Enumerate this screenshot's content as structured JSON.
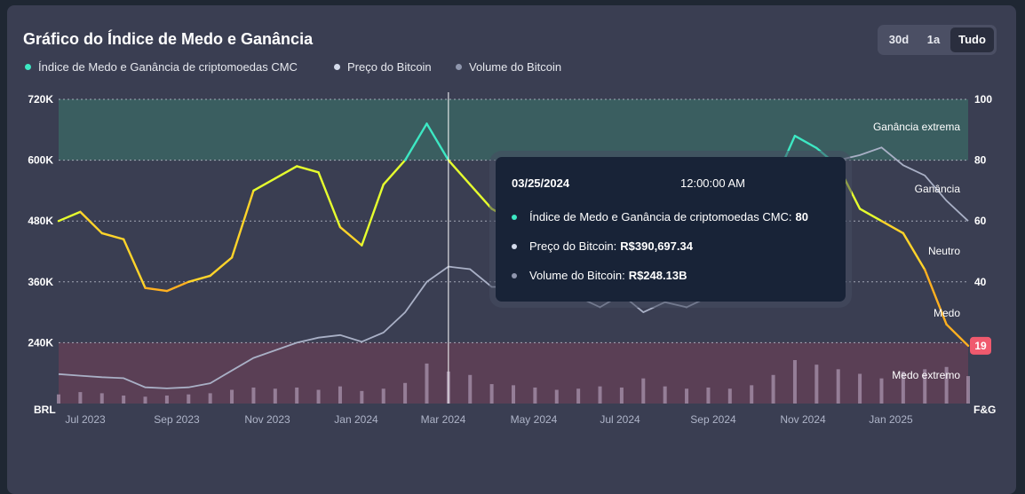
{
  "title": "Gráfico do Índice de Medo e Ganância",
  "range_buttons": [
    {
      "label": "30d",
      "active": false
    },
    {
      "label": "1a",
      "active": false
    },
    {
      "label": "Tudo",
      "active": true
    }
  ],
  "legend": [
    {
      "label": "Índice de Medo e Ganância de criptomoedas CMC",
      "color": "#3de8c3"
    },
    {
      "label": "Preço do Bitcoin",
      "color": "#d4dbeb"
    },
    {
      "label": "Volume do Bitcoin",
      "color": "#8f96ad"
    }
  ],
  "colors": {
    "greed_zone": "#3a5e60",
    "fear_zone": "#5a3f55",
    "fg_extreme_greed": "#3de8c3",
    "fg_greed": "#e6ff2e",
    "fg_neutral": "#ffd42a",
    "fg_fear": "#ffb020",
    "price_line": "#a9b0c6",
    "volume_bar": "#a08aa3",
    "badge": "#f05a6e"
  },
  "tooltip": {
    "date": "03/25/2024",
    "time": "12:00:00 AM",
    "rows": [
      {
        "label": "Índice de Medo e Ganância de criptomoedas CMC:",
        "value": "80",
        "color": "#3de8c3"
      },
      {
        "label": "Preço do Bitcoin:",
        "value": "R$390,697.34",
        "color": "#d4dbeb"
      },
      {
        "label": "Volume do Bitcoin:",
        "value": "R$248.13B",
        "color": "#8f96ad"
      }
    ]
  },
  "chart_data": {
    "type": "line",
    "left_axis": {
      "title": "BRL",
      "ticks": [
        "720K",
        "600K",
        "480K",
        "360K",
        "240K"
      ],
      "ylim": [
        120000,
        720000
      ]
    },
    "right_axis": {
      "title": "F&G",
      "ticks": [
        "100",
        "80",
        "60",
        "40"
      ],
      "ylim": [
        0,
        100
      ]
    },
    "x_ticks": [
      "Jul 2023",
      "Sep 2023",
      "Nov 2023",
      "Jan 2024",
      "Mar 2024",
      "May 2024",
      "Jul 2024",
      "Sep 2024",
      "Nov 2024",
      "Jan 2025"
    ],
    "zones": [
      {
        "label": "Ganância extrema",
        "from": 80,
        "to": 100
      },
      {
        "label": "Ganância",
        "from": 60,
        "to": 80
      },
      {
        "label": "Neutro",
        "from": 40,
        "to": 60
      },
      {
        "label": "Medo",
        "from": 20,
        "to": 40
      },
      {
        "label": "Medo extremo",
        "from": 0,
        "to": 20
      }
    ],
    "x": [
      "2023-06-20",
      "2023-07-05",
      "2023-07-20",
      "2023-08-05",
      "2023-08-20",
      "2023-09-05",
      "2023-09-20",
      "2023-10-05",
      "2023-10-20",
      "2023-11-05",
      "2023-11-20",
      "2023-12-05",
      "2023-12-20",
      "2024-01-05",
      "2024-01-20",
      "2024-02-05",
      "2024-02-20",
      "2024-03-05",
      "2024-03-20",
      "2024-04-05",
      "2024-04-20",
      "2024-05-05",
      "2024-05-20",
      "2024-06-05",
      "2024-06-20",
      "2024-07-05",
      "2024-07-20",
      "2024-08-05",
      "2024-08-20",
      "2024-09-05",
      "2024-09-20",
      "2024-10-05",
      "2024-10-20",
      "2024-11-05",
      "2024-11-20",
      "2024-12-05",
      "2024-12-20",
      "2025-01-05",
      "2025-01-20",
      "2025-02-05",
      "2025-02-20",
      "2025-03-05",
      "2025-03-10"
    ],
    "series": [
      {
        "name": "Índice de Medo e Ganância de criptomoedas CMC",
        "axis": "right",
        "values": [
          60,
          63,
          56,
          54,
          38,
          37,
          40,
          42,
          48,
          70,
          74,
          78,
          76,
          58,
          52,
          72,
          80,
          92,
          80,
          72,
          64,
          60,
          63,
          58,
          52,
          46,
          55,
          48,
          50,
          42,
          48,
          52,
          58,
          72,
          88,
          84,
          78,
          64,
          60,
          56,
          44,
          26,
          19
        ]
      },
      {
        "name": "Preço do Bitcoin",
        "axis": "left",
        "values": [
          178000,
          175000,
          172000,
          170000,
          152000,
          150000,
          152000,
          160000,
          185000,
          210000,
          225000,
          240000,
          250000,
          255000,
          242000,
          260000,
          300000,
          360000,
          390000,
          385000,
          350000,
          350000,
          340000,
          345000,
          330000,
          310000,
          335000,
          300000,
          320000,
          310000,
          330000,
          345000,
          380000,
          420000,
          550000,
          590000,
          600000,
          610000,
          625000,
          590000,
          570000,
          520000,
          480000
        ]
      },
      {
        "name": "Volume do Bitcoin",
        "axis": "bottom",
        "values": [
          8,
          10,
          9,
          7,
          6,
          7,
          8,
          9,
          12,
          14,
          13,
          14,
          12,
          15,
          11,
          13,
          18,
          35,
          28,
          25,
          17,
          16,
          14,
          12,
          13,
          15,
          14,
          22,
          15,
          13,
          14,
          13,
          16,
          25,
          38,
          34,
          30,
          26,
          22,
          28,
          30,
          32,
          24
        ]
      }
    ]
  }
}
